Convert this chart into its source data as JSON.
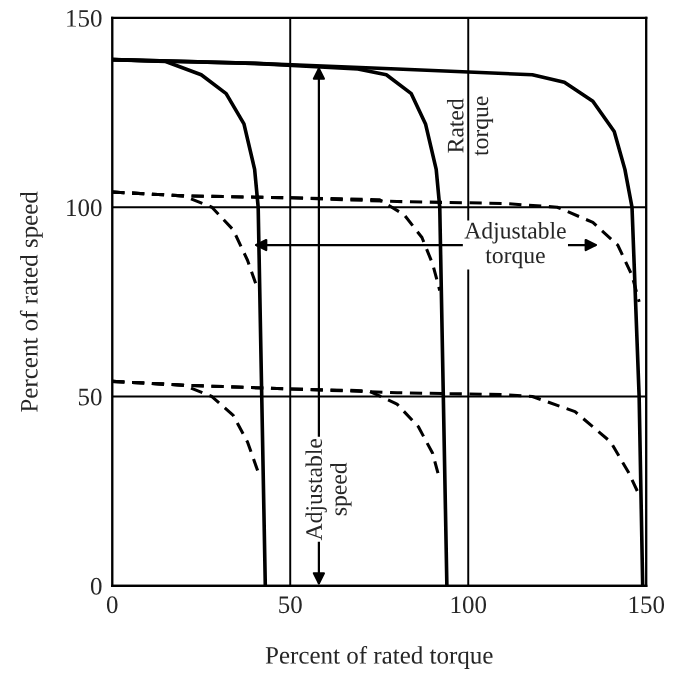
{
  "chart_data": {
    "type": "line",
    "xlabel": "Percent of rated torque",
    "ylabel": "Percent of rated speed",
    "xlim": [
      0,
      150
    ],
    "xticks": [
      0,
      50,
      100,
      150
    ],
    "ylim": [
      0,
      150
    ],
    "yticks": [
      0,
      50,
      100,
      150
    ],
    "grid": true,
    "series": [
      {
        "color": "#000000",
        "line_style": "solid",
        "x": [
          0,
          15,
          25,
          32,
          37,
          40,
          41,
          42,
          43
        ],
        "values": [
          139,
          138.5,
          135,
          130,
          122,
          110,
          100,
          50,
          0
        ]
      },
      {
        "color": "#000000",
        "line_style": "solid",
        "x": [
          0,
          40,
          69,
          77,
          84,
          88,
          91,
          92,
          93,
          94
        ],
        "values": [
          139,
          138,
          136.5,
          135,
          130,
          122,
          110,
          100,
          50,
          0
        ]
      },
      {
        "color": "#000000",
        "line_style": "solid",
        "x": [
          0,
          40,
          80,
          118,
          127,
          135,
          141,
          144,
          146,
          147,
          148,
          149
        ],
        "values": [
          139,
          138,
          136.5,
          135,
          133,
          128,
          120,
          110,
          100,
          75,
          50,
          0
        ]
      },
      {
        "color": "#000000",
        "line_style": "dashed",
        "x": [
          0,
          20,
          28,
          34,
          38,
          41
        ],
        "values": [
          104,
          103,
          100,
          94,
          86,
          78
        ]
      },
      {
        "color": "#000000",
        "line_style": "dashed",
        "x": [
          0,
          20,
          50,
          75,
          82,
          87,
          90,
          92
        ],
        "values": [
          104,
          103,
          102.5,
          102,
          98,
          92,
          85,
          78
        ]
      },
      {
        "color": "#000000",
        "line_style": "dashed",
        "x": [
          0,
          20,
          50,
          80,
          110,
          125,
          135,
          142,
          146,
          148
        ],
        "values": [
          104,
          103,
          102.5,
          101.5,
          101,
          100,
          96,
          90,
          82,
          75
        ]
      },
      {
        "color": "#000000",
        "line_style": "dashed",
        "x": [
          0,
          20,
          28,
          34,
          38,
          41
        ],
        "values": [
          54,
          53,
          50,
          45,
          38,
          30
        ]
      },
      {
        "color": "#000000",
        "line_style": "dashed",
        "x": [
          0,
          20,
          50,
          72,
          80,
          86,
          90,
          92
        ],
        "values": [
          54,
          53,
          52,
          51.5,
          48,
          42,
          35,
          28
        ]
      },
      {
        "color": "#000000",
        "line_style": "dashed",
        "x": [
          0,
          20,
          50,
          80,
          110,
          118,
          130,
          140,
          145,
          148
        ],
        "values": [
          54,
          53,
          52,
          51,
          50.5,
          50,
          46,
          38,
          30,
          24
        ]
      }
    ],
    "annotations": [
      "Rated\ntorque",
      "Adjustable\ntorque",
      "Adjustable\nspeed"
    ]
  }
}
